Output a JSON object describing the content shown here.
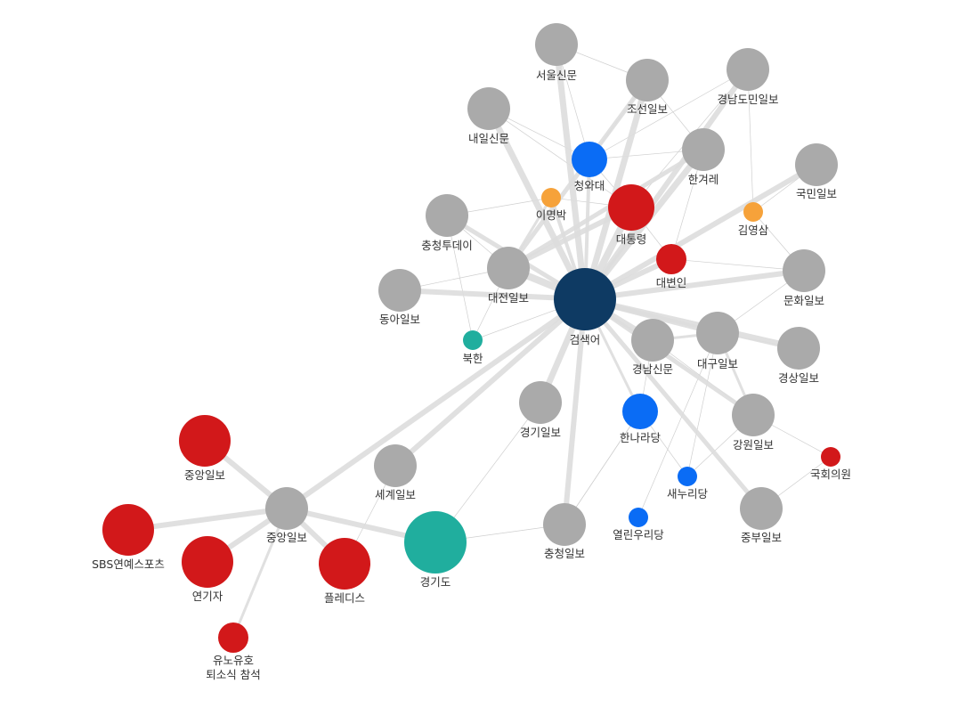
{
  "nodes": [
    {
      "label": "서울신문"
    },
    {
      "label": "조선일보"
    },
    {
      "label": "경남도민일보"
    },
    {
      "label": "내일신문"
    },
    {
      "label": "청와대"
    },
    {
      "label": "한겨레"
    },
    {
      "label": "국민일보"
    },
    {
      "label": "이명박"
    },
    {
      "label": "대통령"
    },
    {
      "label": "김영삼"
    },
    {
      "label": "충청투데이"
    },
    {
      "label": "대변인"
    },
    {
      "label": "대전일보"
    },
    {
      "label": "문화일보"
    },
    {
      "label": "동아일보"
    },
    {
      "label": "검색어"
    },
    {
      "label": "북한"
    },
    {
      "label": "경남신문"
    },
    {
      "label": "대구일보"
    },
    {
      "label": "경상일보"
    },
    {
      "label": "경기일보"
    },
    {
      "label": "한나라당"
    },
    {
      "label": "강원일보"
    },
    {
      "label": "국회의원"
    },
    {
      "label": "중앙일보"
    },
    {
      "label": "세계일보"
    },
    {
      "label": "새누리당"
    },
    {
      "label": "중앙일보"
    },
    {
      "label": "SBS연예스포츠"
    },
    {
      "label": "경기도"
    },
    {
      "label": "충청일보"
    },
    {
      "label": "열린우리당"
    },
    {
      "label": "중부일보"
    },
    {
      "label": "연기자"
    },
    {
      "label": "플레디스"
    },
    {
      "lines": [
        "유노유호",
        "퇴소식 참석"
      ]
    }
  ]
}
